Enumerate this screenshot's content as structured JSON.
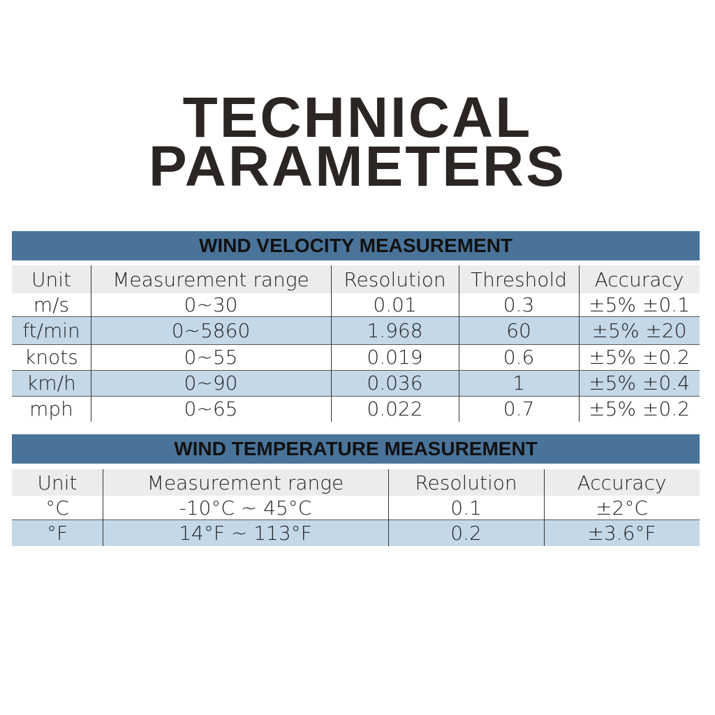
{
  "title": {
    "lines": [
      "TECHNICAL",
      "PARAMETERS"
    ]
  },
  "tables": [
    {
      "title": "WIND VELOCITY MEASUREMENT",
      "columns": [
        "Unit",
        "Measurement range",
        "Resolution",
        "Threshold",
        "Accuracy"
      ],
      "rows": [
        [
          "m/s",
          "0~30",
          "0.01",
          "0.3",
          "±5% ±0.1"
        ],
        [
          "ft/min",
          "0~5860",
          "1.968",
          "60",
          "±5% ±20"
        ],
        [
          "knots",
          "0~55",
          "0.019",
          "0.6",
          "±5% ±0.2"
        ],
        [
          "km/h",
          "0~90",
          "0.036",
          "1",
          "±5% ±0.4"
        ],
        [
          "mph",
          "0~65",
          "0.022",
          "0.7",
          "±5% ±0.2"
        ]
      ]
    },
    {
      "title": "WIND TEMPERATURE MEASUREMENT",
      "columns": [
        "Unit",
        "Measurement range",
        "Resolution",
        "Accuracy"
      ],
      "rows": [
        [
          "°C",
          "-10°C ~ 45°C",
          "0.1",
          "±2°C"
        ],
        [
          "°F",
          "14°F ~ 113°F",
          "0.2",
          "±3.6°F"
        ]
      ]
    }
  ]
}
